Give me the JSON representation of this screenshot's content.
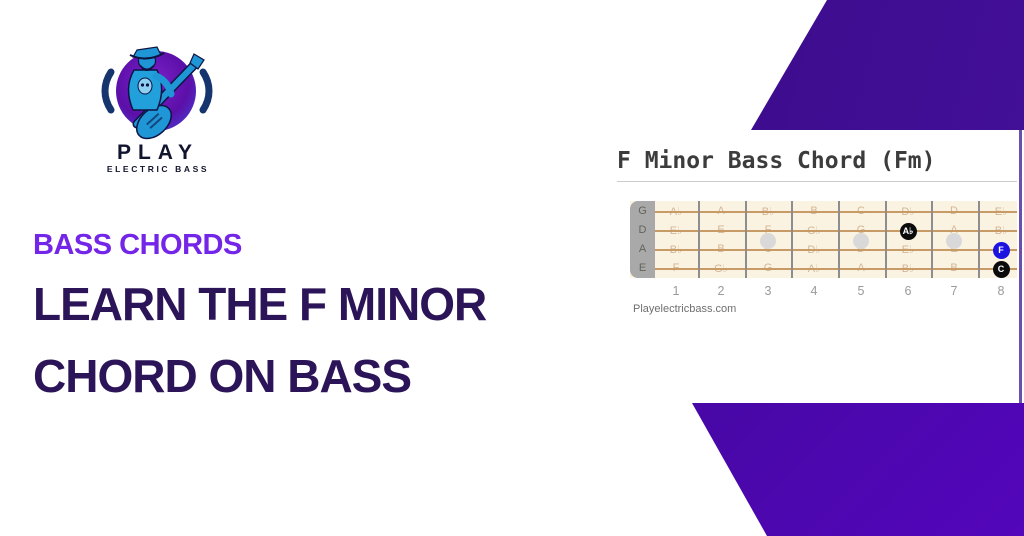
{
  "brand": {
    "name": "PLAY",
    "tagline": "ELECTRIC BASS"
  },
  "left_panel": {
    "eyebrow": "BASS CHORDS",
    "title_line1": "LEARN THE F MINOR",
    "title_line2": "CHORD ON BASS"
  },
  "chord_panel": {
    "title": "F Minor Bass Chord (Fm)",
    "watermark": "Playelectricbass.com",
    "strings": [
      "G",
      "D",
      "A",
      "E"
    ],
    "fret_numbers": [
      "1",
      "2",
      "3",
      "4",
      "5",
      "6",
      "7",
      "8"
    ],
    "position_dot_frets": [
      3,
      5,
      7
    ],
    "note_grid": [
      [
        "A♭",
        "A",
        "B♭",
        "B",
        "C",
        "D♭",
        "D",
        "E♭"
      ],
      [
        "E♭",
        "E",
        "F",
        "G♭",
        "G",
        "A♭",
        "A",
        "B♭"
      ],
      [
        "B♭",
        "B",
        "C",
        "D♭",
        "D",
        "E♭",
        "E",
        "F"
      ],
      [
        "F",
        "G♭",
        "G",
        "A♭",
        "A",
        "B♭",
        "B",
        "C"
      ]
    ],
    "markers": [
      {
        "string": "D",
        "fret": 6,
        "label": "A♭",
        "color": "#0b0b0b",
        "text_color": "#ffffff"
      },
      {
        "string": "A",
        "fret": 8,
        "label": "F",
        "color": "#1d13e0",
        "text_color": "#ffffff"
      },
      {
        "string": "E",
        "fret": 8,
        "label": "C",
        "color": "#0b0b0b",
        "text_color": "#ffffff"
      }
    ]
  },
  "colors": {
    "eyebrow_text": "#7325e8",
    "headline_text": "#2c1458",
    "marker_blue": "#1d13e0",
    "marker_black": "#0b0b0b",
    "purple_shape_dark": "#33086f",
    "purple_shape_bright": "#5306bb",
    "fretboard_bg": "#faf3e2",
    "string_color": "#c79a66",
    "logo_blue": "#2196d3",
    "logo_purple": "#6a15c0"
  }
}
